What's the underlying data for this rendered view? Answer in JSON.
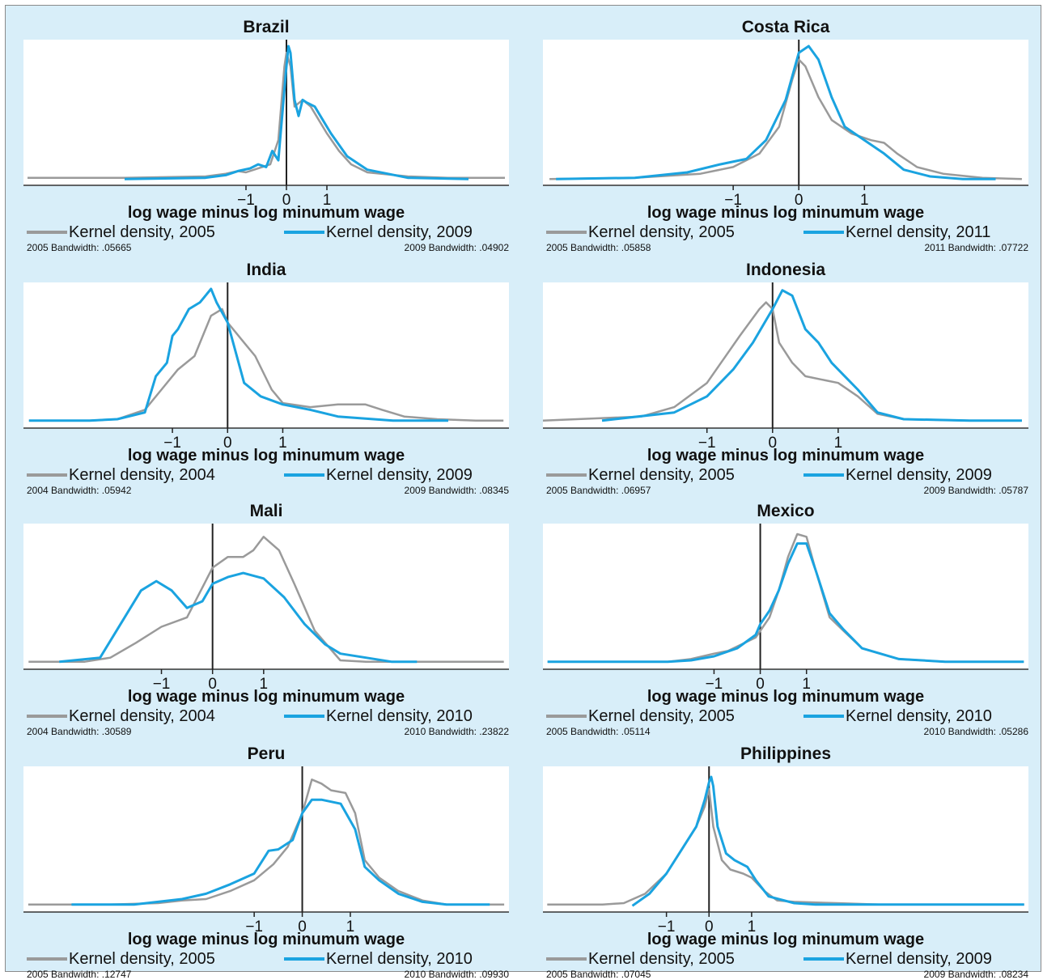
{
  "colors": {
    "series_2005": "#9a9a9a",
    "series_later": "#1aa3e0",
    "axis": "#333333",
    "background": "#d8eef9"
  },
  "chart_data": [
    {
      "type": "line",
      "title": "Brazil",
      "xlabel": "log wage minus log minumum wage",
      "xticks": [
        -1,
        0,
        1
      ],
      "xlim": [
        -6.5,
        5.5
      ],
      "series": [
        {
          "name": "Kernel density, 2005",
          "bandwidth_label": "2005 Bandwidth: .05665",
          "x": [
            -6.4,
            -4,
            -2,
            -1.5,
            -1.2,
            -1,
            -0.8,
            -0.6,
            -0.4,
            -0.2,
            -0.05,
            0,
            0.1,
            0.2,
            0.4,
            0.6,
            0.8,
            1,
            1.3,
            1.6,
            2,
            3,
            4,
            5.4
          ],
          "y": [
            0.02,
            0.02,
            0.03,
            0.05,
            0.07,
            0.06,
            0.08,
            0.1,
            0.12,
            0.3,
            0.85,
            0.95,
            0.85,
            0.55,
            0.6,
            0.55,
            0.45,
            0.35,
            0.22,
            0.12,
            0.06,
            0.03,
            0.02,
            0.02
          ]
        },
        {
          "name": "Kernel density, 2009",
          "bandwidth_label": "2009 Bandwidth: .04902",
          "x": [
            -4,
            -2,
            -1.5,
            -1.2,
            -0.9,
            -0.7,
            -0.5,
            -0.35,
            -0.2,
            0,
            0.05,
            0.1,
            0.2,
            0.3,
            0.4,
            0.5,
            0.7,
            0.9,
            1.1,
            1.5,
            2,
            3,
            4.5
          ],
          "y": [
            0.01,
            0.02,
            0.04,
            0.07,
            0.09,
            0.12,
            0.1,
            0.22,
            0.15,
            0.85,
            1.0,
            0.95,
            0.6,
            0.48,
            0.6,
            0.58,
            0.55,
            0.45,
            0.35,
            0.18,
            0.08,
            0.02,
            0.01
          ]
        }
      ]
    },
    {
      "type": "line",
      "title": "Costa Rica",
      "xlabel": "log wage minus log minumum wage",
      "xticks": [
        -1,
        0,
        1
      ],
      "xlim": [
        -3.9,
        3.5
      ],
      "series": [
        {
          "name": "Kernel density, 2005",
          "bandwidth_label": "2005 Bandwidth: .05858",
          "x": [
            -3.8,
            -2.5,
            -1.5,
            -1,
            -0.6,
            -0.3,
            -0.1,
            0,
            0.1,
            0.3,
            0.5,
            0.8,
            1.1,
            1.3,
            1.5,
            1.8,
            2.2,
            2.8,
            3.4
          ],
          "y": [
            0.01,
            0.02,
            0.05,
            0.1,
            0.2,
            0.4,
            0.75,
            0.9,
            0.85,
            0.62,
            0.45,
            0.35,
            0.3,
            0.28,
            0.2,
            0.1,
            0.05,
            0.02,
            0.01
          ]
        },
        {
          "name": "Kernel density, 2011",
          "bandwidth_label": "2011 Bandwidth: .07722",
          "x": [
            -3.7,
            -2.5,
            -1.7,
            -1.2,
            -0.8,
            -0.5,
            -0.2,
            0,
            0.15,
            0.3,
            0.5,
            0.7,
            1,
            1.3,
            1.6,
            2,
            2.5,
            3.0
          ],
          "y": [
            0.01,
            0.02,
            0.06,
            0.12,
            0.16,
            0.3,
            0.6,
            0.95,
            1.0,
            0.9,
            0.62,
            0.4,
            0.3,
            0.2,
            0.08,
            0.03,
            0.01,
            0.01
          ]
        }
      ]
    },
    {
      "type": "line",
      "title": "India",
      "xlabel": "log wage minus log minumum wage",
      "xticks": [
        -1,
        0,
        1
      ],
      "xlim": [
        -3.7,
        5.1
      ],
      "series": [
        {
          "name": "Kernel density, 2004",
          "bandwidth_label": "2004 Bandwidth: .05942",
          "x": [
            -3.6,
            -2.5,
            -2,
            -1.5,
            -1.2,
            -0.9,
            -0.6,
            -0.3,
            -0.1,
            0,
            0.3,
            0.5,
            0.8,
            1,
            1.5,
            2,
            2.5,
            2.8,
            3.2,
            3.8,
            4.5,
            5
          ],
          "y": [
            0.02,
            0.02,
            0.03,
            0.1,
            0.25,
            0.4,
            0.5,
            0.8,
            0.85,
            0.75,
            0.6,
            0.5,
            0.25,
            0.15,
            0.12,
            0.14,
            0.14,
            0.1,
            0.05,
            0.03,
            0.02,
            0.02
          ]
        },
        {
          "name": "Kernel density, 2009",
          "bandwidth_label": "2009 Bandwidth: .08345",
          "x": [
            -3.6,
            -2.5,
            -2,
            -1.5,
            -1.3,
            -1.1,
            -1,
            -0.9,
            -0.7,
            -0.5,
            -0.3,
            -0.2,
            0,
            0.3,
            0.6,
            1,
            1.5,
            2,
            3,
            4
          ],
          "y": [
            0.02,
            0.02,
            0.03,
            0.08,
            0.35,
            0.45,
            0.65,
            0.7,
            0.85,
            0.9,
            1.0,
            0.9,
            0.75,
            0.3,
            0.2,
            0.14,
            0.1,
            0.05,
            0.02,
            0.02
          ]
        }
      ]
    },
    {
      "type": "line",
      "title": "Indonesia",
      "xlabel": "log wage minus log minumum wage",
      "xticks": [
        -1,
        0,
        1
      ],
      "xlim": [
        -3.5,
        3.9
      ],
      "series": [
        {
          "name": "Kernel density, 2005",
          "bandwidth_label": "2005 Bandwidth: .06957",
          "x": [
            -3.5,
            -2,
            -1.5,
            -1,
            -0.5,
            -0.2,
            -0.1,
            0,
            0.1,
            0.3,
            0.5,
            0.8,
            1,
            1.3,
            1.6,
            2,
            3,
            3.8
          ],
          "y": [
            0.02,
            0.05,
            0.12,
            0.3,
            0.65,
            0.85,
            0.9,
            0.85,
            0.6,
            0.45,
            0.35,
            0.32,
            0.3,
            0.2,
            0.07,
            0.03,
            0.02,
            0.02
          ]
        },
        {
          "name": "Kernel density, 2009",
          "bandwidth_label": "2009 Bandwidth: .05787",
          "x": [
            -2.6,
            -1.5,
            -1,
            -0.6,
            -0.3,
            0,
            0.15,
            0.3,
            0.5,
            0.7,
            0.9,
            1.1,
            1.3,
            1.6,
            2,
            3,
            3.8
          ],
          "y": [
            0.02,
            0.08,
            0.2,
            0.4,
            0.6,
            0.85,
            0.99,
            0.95,
            0.7,
            0.6,
            0.45,
            0.35,
            0.25,
            0.08,
            0.03,
            0.02,
            0.02
          ]
        }
      ]
    },
    {
      "type": "line",
      "title": "Mali",
      "xlabel": "log wage minus log minumum wage",
      "xticks": [
        -1,
        0,
        1
      ],
      "xlim": [
        -3.7,
        5.8
      ],
      "series": [
        {
          "name": "Kernel density, 2004",
          "bandwidth_label": "2004 Bandwidth: .30589",
          "x": [
            -3.6,
            -2.5,
            -2,
            -1.5,
            -1,
            -0.5,
            0,
            0.3,
            0.6,
            0.8,
            1,
            1.3,
            1.6,
            2,
            2.5,
            3,
            4,
            5,
            5.7
          ],
          "y": [
            0.02,
            0.02,
            0.05,
            0.16,
            0.28,
            0.35,
            0.72,
            0.8,
            0.8,
            0.85,
            0.95,
            0.85,
            0.6,
            0.25,
            0.03,
            0.02,
            0.02,
            0.02,
            0.02
          ]
        },
        {
          "name": "Kernel density, 2010",
          "bandwidth_label": "2010 Bandwidth: .23822",
          "x": [
            -3,
            -2.2,
            -1.8,
            -1.4,
            -1.1,
            -0.8,
            -0.5,
            -0.2,
            0,
            0.3,
            0.6,
            1,
            1.4,
            1.8,
            2.2,
            2.5,
            3,
            3.5,
            4
          ],
          "y": [
            0.02,
            0.05,
            0.3,
            0.55,
            0.62,
            0.55,
            0.42,
            0.47,
            0.6,
            0.65,
            0.68,
            0.64,
            0.5,
            0.3,
            0.15,
            0.08,
            0.05,
            0.02,
            0.02
          ]
        }
      ]
    },
    {
      "type": "line",
      "title": "Mexico",
      "xlabel": "log wage minus log minumum wage",
      "xticks": [
        -1,
        0,
        1
      ],
      "xlim": [
        -4.7,
        5.8
      ],
      "series": [
        {
          "name": "Kernel density, 2005",
          "bandwidth_label": "2005 Bandwidth: .05114",
          "x": [
            -4.6,
            -3,
            -2,
            -1.5,
            -1,
            -0.7,
            -0.4,
            -0.1,
            0,
            0.2,
            0.4,
            0.6,
            0.8,
            1,
            1.2,
            1.5,
            1.8,
            2.2,
            3,
            4,
            5.7
          ],
          "y": [
            0.02,
            0.02,
            0.02,
            0.04,
            0.08,
            0.1,
            0.15,
            0.2,
            0.25,
            0.35,
            0.55,
            0.8,
            0.97,
            0.95,
            0.7,
            0.35,
            0.25,
            0.12,
            0.04,
            0.02,
            0.02
          ]
        },
        {
          "name": "Kernel density, 2010",
          "bandwidth_label": "2010 Bandwidth: .05286",
          "x": [
            -4.6,
            -3,
            -2,
            -1.5,
            -1,
            -0.5,
            -0.1,
            0,
            0.2,
            0.4,
            0.6,
            0.8,
            1,
            1.2,
            1.5,
            1.8,
            2.2,
            3,
            4,
            5.7
          ],
          "y": [
            0.02,
            0.02,
            0.02,
            0.03,
            0.06,
            0.12,
            0.22,
            0.3,
            0.4,
            0.55,
            0.75,
            0.9,
            0.9,
            0.7,
            0.38,
            0.26,
            0.12,
            0.04,
            0.02,
            0.02
          ]
        }
      ]
    },
    {
      "type": "line",
      "title": "Peru",
      "xlabel": "log wage minus log minumum wage",
      "xticks": [
        -1,
        0,
        1
      ],
      "xlim": [
        -5.8,
        4.3
      ],
      "series": [
        {
          "name": "Kernel density, 2005",
          "bandwidth_label": "2005 Bandwidth: .12747",
          "x": [
            -5.7,
            -4,
            -3,
            -2.5,
            -2,
            -1.5,
            -1,
            -0.6,
            -0.3,
            0,
            0.2,
            0.4,
            0.6,
            0.9,
            1.1,
            1.3,
            1.6,
            2,
            2.5,
            3,
            3.5,
            4.2
          ],
          "y": [
            0.02,
            0.02,
            0.03,
            0.05,
            0.06,
            0.12,
            0.2,
            0.32,
            0.45,
            0.7,
            0.95,
            0.92,
            0.87,
            0.85,
            0.7,
            0.35,
            0.22,
            0.12,
            0.05,
            0.02,
            0.02,
            0.02
          ]
        },
        {
          "name": "Kernel density, 2010",
          "bandwidth_label": "2010 Bandwidth: .09930",
          "x": [
            -4.8,
            -3.5,
            -3,
            -2.5,
            -2,
            -1.5,
            -1,
            -0.7,
            -0.5,
            -0.2,
            0,
            0.2,
            0.4,
            0.8,
            1.1,
            1.3,
            1.6,
            2,
            2.5,
            3,
            3.9
          ],
          "y": [
            0.02,
            0.02,
            0.04,
            0.06,
            0.1,
            0.17,
            0.25,
            0.42,
            0.43,
            0.5,
            0.7,
            0.8,
            0.8,
            0.77,
            0.58,
            0.3,
            0.2,
            0.1,
            0.04,
            0.02,
            0.02
          ]
        }
      ]
    },
    {
      "type": "line",
      "title": "Philippines",
      "xlabel": "log wage minus log minumum wage",
      "xticks": [
        -1,
        0,
        1
      ],
      "xlim": [
        -3.9,
        7.5
      ],
      "series": [
        {
          "name": "Kernel density, 2005",
          "bandwidth_label": "2005 Bandwidth: .07045",
          "x": [
            -3.8,
            -2.5,
            -2,
            -1.5,
            -1,
            -0.6,
            -0.3,
            -0.1,
            0,
            0.1,
            0.3,
            0.5,
            0.8,
            1,
            1.3,
            1.6,
            2,
            3,
            4,
            7.4
          ],
          "y": [
            0.02,
            0.02,
            0.03,
            0.1,
            0.25,
            0.45,
            0.6,
            0.75,
            0.88,
            0.6,
            0.35,
            0.28,
            0.25,
            0.22,
            0.12,
            0.05,
            0.04,
            0.03,
            0.02,
            0.02
          ]
        },
        {
          "name": "Kernel density, 2009",
          "bandwidth_label": "2009 Bandwidth: .08234",
          "x": [
            -1.8,
            -1.4,
            -1,
            -0.6,
            -0.3,
            -0.1,
            0,
            0.05,
            0.1,
            0.2,
            0.4,
            0.6,
            0.9,
            1.1,
            1.4,
            2,
            2.5,
            3,
            4,
            7.4
          ],
          "y": [
            0.01,
            0.1,
            0.25,
            0.45,
            0.6,
            0.8,
            0.93,
            0.97,
            0.9,
            0.6,
            0.4,
            0.35,
            0.3,
            0.2,
            0.08,
            0.03,
            0.02,
            0.02,
            0.02,
            0.02
          ]
        }
      ]
    }
  ]
}
